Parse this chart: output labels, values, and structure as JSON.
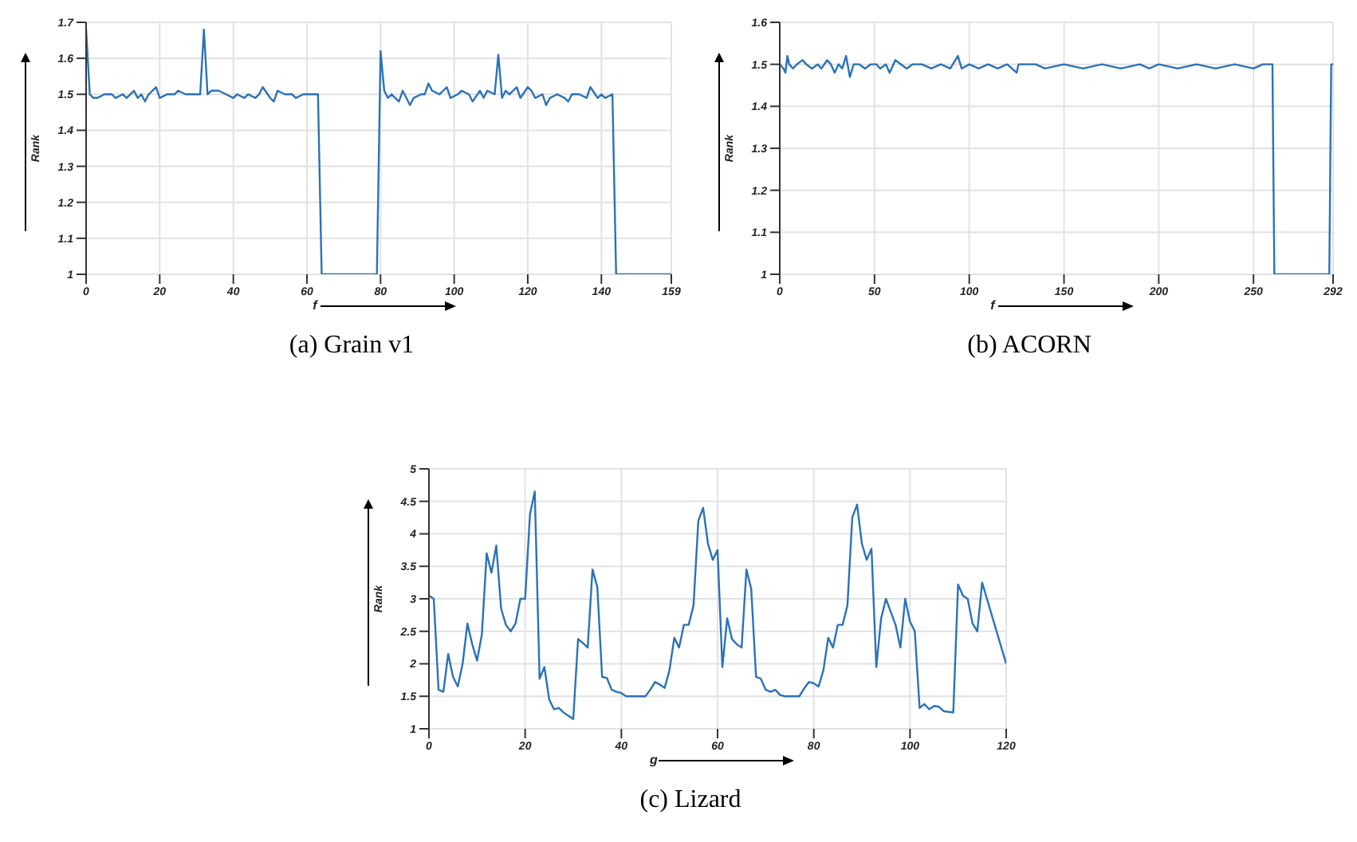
{
  "chart_data": [
    {
      "type": "line",
      "title": "(a) Grain v1",
      "xlabel": "f",
      "ylabel": "Rank",
      "xlim": [
        0,
        159
      ],
      "xticks": [
        0,
        20,
        40,
        60,
        80,
        100,
        120,
        140,
        159
      ],
      "ylim": [
        1,
        1.7
      ],
      "yticks": [
        1,
        1.1,
        1.2,
        1.3,
        1.4,
        1.5,
        1.6,
        1.7
      ],
      "grid": true,
      "legend": false,
      "marker": "none",
      "line_style": "solid",
      "series": [
        {
          "color": "#2a72b8",
          "x": [
            0,
            1,
            2,
            3,
            5,
            7,
            8,
            10,
            11,
            13,
            14,
            15,
            16,
            17,
            18,
            19,
            20,
            22,
            24,
            25,
            27,
            29,
            31,
            32,
            33,
            34,
            36,
            38,
            40,
            41,
            43,
            44,
            46,
            47,
            48,
            50,
            51,
            52,
            54,
            56,
            57,
            59,
            61,
            63,
            64,
            79,
            80,
            81,
            82,
            83,
            84,
            85,
            86,
            87,
            88,
            89,
            91,
            92,
            93,
            94,
            96,
            98,
            99,
            101,
            102,
            104,
            105,
            107,
            108,
            109,
            111,
            112,
            113,
            114,
            115,
            117,
            118,
            120,
            121,
            122,
            124,
            125,
            126,
            128,
            130,
            131,
            132,
            134,
            136,
            137,
            139,
            140,
            141,
            143,
            144,
            159
          ],
          "values": [
            1.68,
            1.5,
            1.49,
            1.49,
            1.5,
            1.5,
            1.49,
            1.5,
            1.49,
            1.51,
            1.49,
            1.5,
            1.48,
            1.5,
            1.51,
            1.52,
            1.49,
            1.5,
            1.5,
            1.51,
            1.5,
            1.5,
            1.5,
            1.68,
            1.5,
            1.51,
            1.51,
            1.5,
            1.49,
            1.5,
            1.49,
            1.5,
            1.49,
            1.5,
            1.52,
            1.49,
            1.48,
            1.51,
            1.5,
            1.5,
            1.49,
            1.5,
            1.5,
            1.5,
            1,
            1,
            1.62,
            1.51,
            1.49,
            1.5,
            1.49,
            1.48,
            1.51,
            1.49,
            1.47,
            1.49,
            1.5,
            1.5,
            1.53,
            1.51,
            1.5,
            1.52,
            1.49,
            1.5,
            1.51,
            1.5,
            1.48,
            1.51,
            1.49,
            1.51,
            1.5,
            1.61,
            1.49,
            1.51,
            1.5,
            1.52,
            1.49,
            1.52,
            1.51,
            1.49,
            1.5,
            1.47,
            1.49,
            1.5,
            1.49,
            1.48,
            1.5,
            1.5,
            1.49,
            1.52,
            1.49,
            1.5,
            1.49,
            1.5,
            1,
            1
          ]
        }
      ]
    },
    {
      "type": "line",
      "title": "(b) ACORN",
      "xlabel": "f",
      "ylabel": "Rank",
      "xlim": [
        0,
        292
      ],
      "xticks": [
        0,
        50,
        100,
        150,
        200,
        250,
        292
      ],
      "ylim": [
        1,
        1.6
      ],
      "yticks": [
        1,
        1.1,
        1.2,
        1.3,
        1.4,
        1.5,
        1.6
      ],
      "grid": true,
      "legend": false,
      "marker": "none",
      "line_style": "solid",
      "series": [
        {
          "color": "#2a72b8",
          "x": [
            0,
            2,
            3,
            4,
            5,
            7,
            9,
            12,
            14,
            17,
            20,
            22,
            25,
            27,
            29,
            31,
            33,
            35,
            37,
            39,
            42,
            45,
            48,
            51,
            53,
            56,
            58,
            61,
            64,
            67,
            70,
            75,
            80,
            85,
            90,
            94,
            96,
            100,
            105,
            110,
            115,
            120,
            125,
            126,
            135,
            140,
            150,
            160,
            170,
            180,
            190,
            195,
            200,
            210,
            220,
            230,
            240,
            250,
            255,
            260,
            261,
            290,
            291,
            292
          ],
          "values": [
            1.5,
            1.49,
            1.48,
            1.52,
            1.5,
            1.49,
            1.5,
            1.51,
            1.5,
            1.49,
            1.5,
            1.49,
            1.51,
            1.5,
            1.48,
            1.5,
            1.49,
            1.52,
            1.47,
            1.5,
            1.5,
            1.49,
            1.5,
            1.5,
            1.49,
            1.5,
            1.48,
            1.51,
            1.5,
            1.49,
            1.5,
            1.5,
            1.49,
            1.5,
            1.49,
            1.52,
            1.49,
            1.5,
            1.49,
            1.5,
            1.49,
            1.5,
            1.48,
            1.5,
            1.5,
            1.49,
            1.5,
            1.49,
            1.5,
            1.49,
            1.5,
            1.49,
            1.5,
            1.49,
            1.5,
            1.49,
            1.5,
            1.49,
            1.5,
            1.5,
            1,
            1,
            1.5,
            1.5
          ]
        }
      ]
    },
    {
      "type": "line",
      "title": "(c) Lizard",
      "xlabel": "g",
      "ylabel": "Rank",
      "xlim": [
        0,
        120
      ],
      "xticks": [
        0,
        20,
        40,
        60,
        80,
        100,
        120
      ],
      "ylim": [
        1,
        5
      ],
      "yticks": [
        1,
        1.5,
        2,
        2.5,
        3,
        3.5,
        4,
        4.5,
        5
      ],
      "grid": true,
      "legend": false,
      "marker": "none",
      "line_style": "solid",
      "series": [
        {
          "color": "#2a72b8",
          "x": [
            0,
            1,
            2,
            3,
            4,
            5,
            6,
            7,
            8,
            9,
            10,
            11,
            12,
            13,
            14,
            15,
            16,
            17,
            18,
            19,
            20,
            21,
            22,
            23,
            24,
            25,
            26,
            27,
            28,
            29,
            30,
            31,
            32,
            33,
            34,
            35,
            36,
            37,
            38,
            39,
            40,
            41,
            42,
            43,
            44,
            45,
            46,
            47,
            48,
            49,
            50,
            51,
            52,
            53,
            54,
            55,
            56,
            57,
            58,
            59,
            60,
            61,
            62,
            63,
            64,
            65,
            66,
            67,
            68,
            69,
            70,
            71,
            72,
            73,
            74,
            75,
            76,
            77,
            78,
            79,
            80,
            81,
            82,
            83,
            84,
            85,
            86,
            87,
            88,
            89,
            90,
            91,
            92,
            93,
            94,
            95,
            96,
            97,
            98,
            99,
            100,
            101,
            102,
            103,
            104,
            105,
            106,
            107,
            108,
            109,
            110,
            111,
            112,
            113,
            114,
            115,
            116,
            117,
            118,
            119,
            120
          ],
          "values": [
            3.05,
            3.0,
            1.6,
            1.57,
            2.15,
            1.8,
            1.65,
            2.0,
            2.62,
            2.3,
            2.05,
            2.45,
            3.7,
            3.4,
            3.82,
            2.85,
            2.6,
            2.5,
            2.62,
            3.0,
            3.0,
            4.3,
            4.65,
            1.77,
            1.95,
            1.45,
            1.3,
            1.32,
            1.25,
            1.2,
            1.15,
            2.38,
            2.32,
            2.25,
            3.45,
            3.18,
            1.8,
            1.78,
            1.6,
            1.57,
            1.55,
            1.5,
            1.5,
            1.5,
            1.5,
            1.5,
            1.6,
            1.72,
            1.68,
            1.63,
            1.9,
            2.4,
            2.25,
            2.6,
            2.6,
            2.9,
            4.2,
            4.4,
            3.85,
            3.6,
            3.75,
            1.95,
            2.7,
            2.38,
            2.3,
            2.25,
            3.45,
            3.15,
            1.8,
            1.77,
            1.6,
            1.57,
            1.6,
            1.52,
            1.5,
            1.5,
            1.5,
            1.5,
            1.62,
            1.72,
            1.7,
            1.65,
            1.9,
            2.4,
            2.25,
            2.6,
            2.6,
            2.9,
            4.25,
            4.45,
            3.85,
            3.6,
            3.77,
            1.95,
            2.7,
            3.0,
            2.8,
            2.6,
            2.25,
            3.0,
            2.65,
            2.5,
            1.32,
            1.38,
            1.3,
            1.35,
            1.34,
            1.27,
            1.26,
            1.25,
            3.22,
            3.05,
            3.0,
            2.62,
            2.5,
            3.25,
            3.0,
            2.75,
            2.5,
            2.25,
            2.0
          ]
        }
      ]
    }
  ]
}
